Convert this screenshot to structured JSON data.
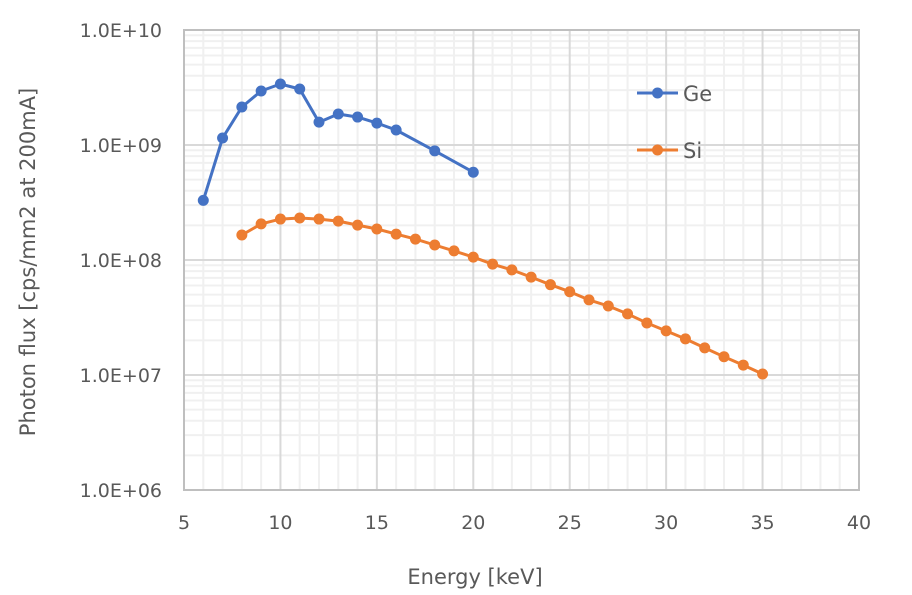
{
  "chart_data": {
    "type": "line",
    "title": "",
    "xlabel": "Energy [keV]",
    "ylabel": "Photon flux [cps/mm2 at 200mA]",
    "xlim": [
      5,
      40
    ],
    "ylim": [
      1000000,
      10000000000
    ],
    "yscale": "log",
    "x_ticks": [
      5,
      10,
      15,
      20,
      25,
      30,
      35,
      40
    ],
    "x_tick_labels": [
      "5",
      "10",
      "15",
      "20",
      "25",
      "30",
      "35",
      "40"
    ],
    "y_ticks": [
      1000000,
      10000000,
      100000000,
      1000000000,
      10000000000
    ],
    "y_tick_labels": [
      "1.0E+06",
      "1.0E+07",
      "1.0E+08",
      "1.0E+09",
      "1.0E+10"
    ],
    "grid": {
      "major": true,
      "minor": true
    },
    "legend": {
      "position": "top-right",
      "entries": [
        "Ge",
        "Si"
      ]
    },
    "series": [
      {
        "name": "Ge",
        "color": "#4472c4",
        "x": [
          6,
          7,
          8,
          9,
          10,
          11,
          12,
          13,
          14,
          15,
          16,
          18,
          20
        ],
        "y": [
          330000000,
          1150000000,
          2140000000,
          2950000000,
          3390000000,
          3070000000,
          1580000000,
          1860000000,
          1750000000,
          1550000000,
          1350000000,
          890000000,
          580000000
        ]
      },
      {
        "name": "Si",
        "color": "#ed7d31",
        "x": [
          8,
          9,
          10,
          11,
          12,
          13,
          14,
          15,
          16,
          17,
          18,
          19,
          20,
          21,
          22,
          23,
          24,
          25,
          26,
          27,
          28,
          29,
          30,
          31,
          32,
          33,
          34,
          35
        ],
        "y": [
          165000000,
          206000000,
          227000000,
          232000000,
          227000000,
          218000000,
          201000000,
          186000000,
          168000000,
          152000000,
          135000000,
          120000000,
          106000000,
          92000000,
          82000000,
          71000000,
          61000000,
          53000000,
          45000000,
          39800000,
          34000000,
          28300000,
          24200000,
          20600000,
          17200000,
          14400000,
          12200000,
          10200000
        ]
      }
    ]
  }
}
